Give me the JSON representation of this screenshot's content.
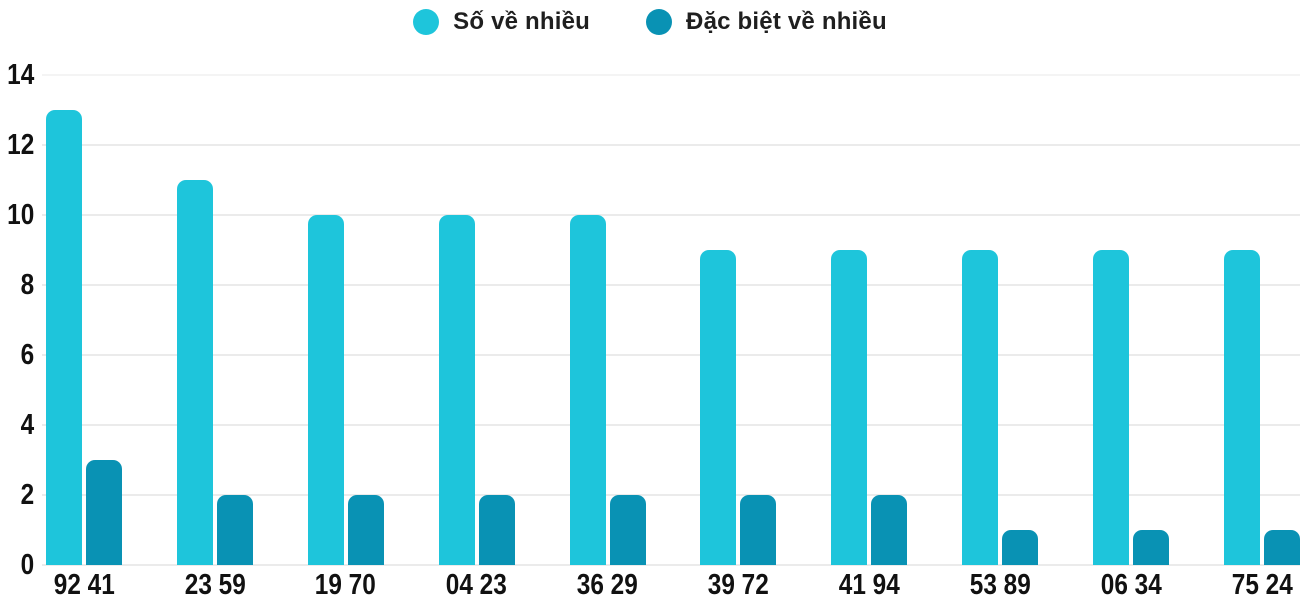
{
  "legend": {
    "items": [
      {
        "label": "Số về nhiều",
        "color": "#1ec5db"
      },
      {
        "label": "Đặc biệt về nhiều",
        "color": "#0992b4"
      }
    ]
  },
  "chart_data": {
    "type": "bar",
    "title": "",
    "xlabel": "",
    "ylabel": "",
    "categories": [
      "92 41",
      "23 59",
      "19 70",
      "04 23",
      "36 29",
      "39 72",
      "41 94",
      "53 89",
      "06 34",
      "75 24"
    ],
    "series": [
      {
        "name": "Số về nhiều",
        "color": "#1ec5db",
        "values": [
          13,
          11,
          10,
          10,
          10,
          9,
          9,
          9,
          9,
          9
        ]
      },
      {
        "name": "Đặc biệt về nhiều",
        "color": "#0992b4",
        "values": [
          3,
          2,
          2,
          2,
          2,
          2,
          2,
          1,
          1,
          1
        ]
      }
    ],
    "ylim": [
      0,
      14
    ],
    "yticks": [
      0,
      2,
      4,
      6,
      8,
      10,
      12,
      14
    ],
    "grid": true,
    "legend_position": "top",
    "colors": {
      "grid": "#ebebeb",
      "tick_text": "#111111",
      "legend_text": "#1f1f1f",
      "background": "#ffffff"
    }
  }
}
